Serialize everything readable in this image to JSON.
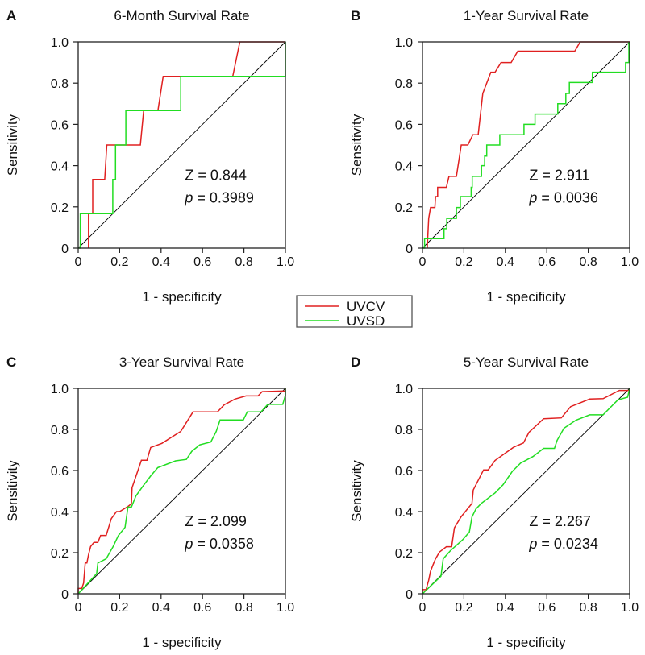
{
  "colors": {
    "UVCV": "#e02020",
    "UVSD": "#22dd22",
    "reference": "#000000"
  },
  "legend": {
    "placement": "center",
    "entries": [
      "UVCV",
      "UVSD"
    ]
  },
  "chart_data": [
    {
      "type": "line",
      "panel": "A",
      "title": "6-Month Survival Rate",
      "xlabel": "1 - specificity",
      "ylabel": "Sensitivity",
      "xlim": [
        0,
        1
      ],
      "ylim": [
        0,
        1
      ],
      "xticks": [
        "0",
        "0.2",
        "0.4",
        "0.6",
        "0.8",
        "1.0"
      ],
      "yticks": [
        "0",
        "0.2",
        "0.4",
        "0.6",
        "0.8",
        "1.0"
      ],
      "annotation": {
        "z": "Z = 0.844",
        "p_label": "p",
        "p_value": " = 0.3989"
      },
      "series": [
        {
          "name": "UVCV",
          "points": [
            [
              0.05,
              0
            ],
            [
              0.05,
              0.167
            ],
            [
              0.07,
              0.167
            ],
            [
              0.07,
              0.333
            ],
            [
              0.128,
              0.333
            ],
            [
              0.138,
              0.5
            ],
            [
              0.3,
              0.5
            ],
            [
              0.316,
              0.667
            ],
            [
              0.385,
              0.667
            ],
            [
              0.41,
              0.833
            ],
            [
              0.746,
              0.833
            ],
            [
              0.78,
              1
            ],
            [
              1,
              1
            ]
          ]
        },
        {
          "name": "UVSD",
          "points": [
            [
              0,
              0
            ],
            [
              0.01,
              0
            ],
            [
              0.01,
              0.167
            ],
            [
              0.167,
              0.167
            ],
            [
              0.167,
              0.333
            ],
            [
              0.18,
              0.333
            ],
            [
              0.18,
              0.5
            ],
            [
              0.23,
              0.5
            ],
            [
              0.23,
              0.667
            ],
            [
              0.495,
              0.667
            ],
            [
              0.495,
              0.833
            ],
            [
              1,
              0.833
            ],
            [
              1,
              1
            ]
          ]
        }
      ]
    },
    {
      "type": "line",
      "panel": "B",
      "title": "1-Year Survival Rate",
      "xlabel": "1 - specificity",
      "ylabel": "Sensitivity",
      "xlim": [
        0,
        1
      ],
      "ylim": [
        0,
        1
      ],
      "xticks": [
        "0",
        "0.2",
        "0.4",
        "0.6",
        "0.8",
        "1.0"
      ],
      "yticks": [
        "0",
        "0.2",
        "0.4",
        "0.6",
        "0.8",
        "1.0"
      ],
      "annotation": {
        "z": "Z = 2.911",
        "p_label": "p",
        "p_value": " = 0.0036"
      },
      "series": [
        {
          "name": "UVCV",
          "points": [
            [
              0.023,
              0
            ],
            [
              0.03,
              0.144
            ],
            [
              0.039,
              0.197
            ],
            [
              0.06,
              0.197
            ],
            [
              0.063,
              0.25
            ],
            [
              0.073,
              0.25
            ],
            [
              0.073,
              0.295
            ],
            [
              0.115,
              0.295
            ],
            [
              0.128,
              0.348
            ],
            [
              0.164,
              0.348
            ],
            [
              0.187,
              0.5
            ],
            [
              0.219,
              0.5
            ],
            [
              0.243,
              0.55
            ],
            [
              0.269,
              0.55
            ],
            [
              0.291,
              0.75
            ],
            [
              0.33,
              0.853
            ],
            [
              0.35,
              0.853
            ],
            [
              0.379,
              0.9
            ],
            [
              0.428,
              0.9
            ],
            [
              0.46,
              0.955
            ],
            [
              0.735,
              0.955
            ],
            [
              0.761,
              1
            ],
            [
              1,
              1
            ]
          ]
        },
        {
          "name": "UVSD",
          "points": [
            [
              0,
              0
            ],
            [
              0.01,
              0
            ],
            [
              0.01,
              0.046
            ],
            [
              0.104,
              0.046
            ],
            [
              0.104,
              0.094
            ],
            [
              0.117,
              0.094
            ],
            [
              0.117,
              0.144
            ],
            [
              0.164,
              0.144
            ],
            [
              0.164,
              0.197
            ],
            [
              0.183,
              0.197
            ],
            [
              0.183,
              0.25
            ],
            [
              0.235,
              0.25
            ],
            [
              0.235,
              0.295
            ],
            [
              0.24,
              0.295
            ],
            [
              0.24,
              0.348
            ],
            [
              0.285,
              0.348
            ],
            [
              0.285,
              0.4
            ],
            [
              0.3,
              0.4
            ],
            [
              0.3,
              0.446
            ],
            [
              0.31,
              0.446
            ],
            [
              0.31,
              0.5
            ],
            [
              0.373,
              0.5
            ],
            [
              0.373,
              0.55
            ],
            [
              0.49,
              0.55
            ],
            [
              0.49,
              0.6
            ],
            [
              0.543,
              0.6
            ],
            [
              0.543,
              0.65
            ],
            [
              0.653,
              0.65
            ],
            [
              0.653,
              0.7
            ],
            [
              0.692,
              0.7
            ],
            [
              0.692,
              0.75
            ],
            [
              0.709,
              0.75
            ],
            [
              0.709,
              0.803
            ],
            [
              0.82,
              0.803
            ],
            [
              0.82,
              0.853
            ],
            [
              0.98,
              0.853
            ],
            [
              0.98,
              0.9
            ],
            [
              0.996,
              0.9
            ],
            [
              0.996,
              1
            ]
          ]
        }
      ]
    },
    {
      "type": "line",
      "panel": "C",
      "title": "3-Year Survival Rate",
      "xlabel": "1 - specificity",
      "ylabel": "Sensitivity",
      "xlim": [
        0,
        1
      ],
      "ylim": [
        0,
        1
      ],
      "xticks": [
        "0",
        "0.2",
        "0.4",
        "0.6",
        "0.8",
        "1.0"
      ],
      "yticks": [
        "0",
        "0.2",
        "0.4",
        "0.6",
        "0.8",
        "1.0"
      ],
      "annotation": {
        "z": "Z = 2.099",
        "p_label": "p",
        "p_value": " = 0.0358"
      },
      "series": [
        {
          "name": "UVCV",
          "points": [
            [
              0,
              0
            ],
            [
              0,
              0.026
            ],
            [
              0.017,
              0.026
            ],
            [
              0.026,
              0.052
            ],
            [
              0.034,
              0.15
            ],
            [
              0.042,
              0.15
            ],
            [
              0.05,
              0.19
            ],
            [
              0.06,
              0.23
            ],
            [
              0.076,
              0.25
            ],
            [
              0.095,
              0.25
            ],
            [
              0.108,
              0.284
            ],
            [
              0.135,
              0.284
            ],
            [
              0.16,
              0.366
            ],
            [
              0.185,
              0.4
            ],
            [
              0.2,
              0.4
            ],
            [
              0.24,
              0.425
            ],
            [
              0.257,
              0.438
            ],
            [
              0.26,
              0.516
            ],
            [
              0.305,
              0.65
            ],
            [
              0.332,
              0.65
            ],
            [
              0.35,
              0.712
            ],
            [
              0.404,
              0.732
            ],
            [
              0.495,
              0.79
            ],
            [
              0.554,
              0.885
            ],
            [
              0.672,
              0.885
            ],
            [
              0.705,
              0.92
            ],
            [
              0.757,
              0.948
            ],
            [
              0.81,
              0.963
            ],
            [
              0.868,
              0.963
            ],
            [
              0.888,
              0.984
            ],
            [
              1,
              0.987
            ],
            [
              1,
              1
            ]
          ]
        },
        {
          "name": "UVSD",
          "points": [
            [
              0,
              0
            ],
            [
              0.089,
              0.098
            ],
            [
              0.095,
              0.15
            ],
            [
              0.135,
              0.17
            ],
            [
              0.168,
              0.229
            ],
            [
              0.194,
              0.284
            ],
            [
              0.226,
              0.323
            ],
            [
              0.24,
              0.422
            ],
            [
              0.257,
              0.422
            ],
            [
              0.279,
              0.477
            ],
            [
              0.312,
              0.523
            ],
            [
              0.351,
              0.575
            ],
            [
              0.384,
              0.614
            ],
            [
              0.47,
              0.647
            ],
            [
              0.522,
              0.654
            ],
            [
              0.548,
              0.693
            ],
            [
              0.587,
              0.725
            ],
            [
              0.64,
              0.739
            ],
            [
              0.666,
              0.79
            ],
            [
              0.685,
              0.846
            ],
            [
              0.797,
              0.846
            ],
            [
              0.816,
              0.885
            ],
            [
              0.882,
              0.885
            ],
            [
              0.915,
              0.922
            ],
            [
              0.987,
              0.922
            ],
            [
              1,
              0.967
            ],
            [
              1,
              1
            ]
          ]
        }
      ]
    },
    {
      "type": "line",
      "panel": "D",
      "title": "5-Year Survival Rate",
      "xlabel": "1 - specificity",
      "ylabel": "Sensitivity",
      "xlim": [
        0,
        1
      ],
      "ylim": [
        0,
        1
      ],
      "xticks": [
        "0",
        "0.2",
        "0.4",
        "0.6",
        "0.8",
        "1.0"
      ],
      "yticks": [
        "0",
        "0.2",
        "0.4",
        "0.6",
        "0.8",
        "1.0"
      ],
      "annotation": {
        "z": "Z = 2.267",
        "p_label": "p",
        "p_value": " = 0.0234"
      },
      "series": [
        {
          "name": "UVCV",
          "points": [
            [
              0,
              0
            ],
            [
              0,
              0.02
            ],
            [
              0.017,
              0.02
            ],
            [
              0.03,
              0.066
            ],
            [
              0.039,
              0.11
            ],
            [
              0.052,
              0.144
            ],
            [
              0.063,
              0.17
            ],
            [
              0.082,
              0.203
            ],
            [
              0.115,
              0.229
            ],
            [
              0.141,
              0.229
            ],
            [
              0.154,
              0.321
            ],
            [
              0.186,
              0.374
            ],
            [
              0.239,
              0.44
            ],
            [
              0.245,
              0.505
            ],
            [
              0.295,
              0.603
            ],
            [
              0.317,
              0.603
            ],
            [
              0.35,
              0.649
            ],
            [
              0.441,
              0.714
            ],
            [
              0.487,
              0.734
            ],
            [
              0.514,
              0.786
            ],
            [
              0.585,
              0.852
            ],
            [
              0.67,
              0.856
            ],
            [
              0.715,
              0.911
            ],
            [
              0.807,
              0.948
            ],
            [
              0.872,
              0.95
            ],
            [
              0.95,
              0.99
            ],
            [
              1,
              0.99
            ],
            [
              1,
              1
            ]
          ]
        },
        {
          "name": "UVSD",
          "points": [
            [
              0,
              0
            ],
            [
              0.089,
              0.085
            ],
            [
              0.1,
              0.17
            ],
            [
              0.135,
              0.21
            ],
            [
              0.193,
              0.262
            ],
            [
              0.226,
              0.3
            ],
            [
              0.239,
              0.374
            ],
            [
              0.258,
              0.413
            ],
            [
              0.284,
              0.44
            ],
            [
              0.35,
              0.491
            ],
            [
              0.389,
              0.531
            ],
            [
              0.434,
              0.596
            ],
            [
              0.473,
              0.636
            ],
            [
              0.533,
              0.668
            ],
            [
              0.585,
              0.708
            ],
            [
              0.637,
              0.708
            ],
            [
              0.65,
              0.747
            ],
            [
              0.683,
              0.806
            ],
            [
              0.741,
              0.845
            ],
            [
              0.807,
              0.871
            ],
            [
              0.872,
              0.871
            ],
            [
              0.898,
              0.898
            ],
            [
              0.943,
              0.944
            ],
            [
              0.99,
              0.957
            ],
            [
              1,
              1
            ]
          ]
        }
      ]
    }
  ]
}
